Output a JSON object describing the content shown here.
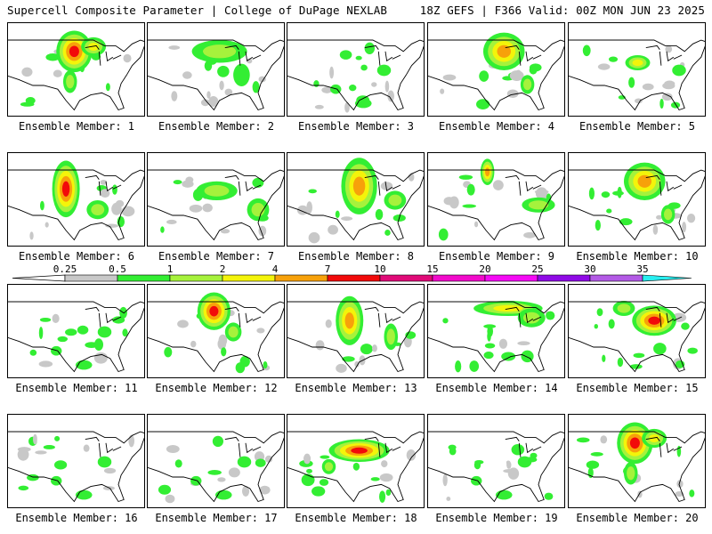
{
  "header": {
    "left": "Supercell Composite Parameter | College of DuPage NEXLAB",
    "right": "18Z GEFS | F366 Valid: 00Z MON JUN 23 2025"
  },
  "colorbar": {
    "labels": [
      "0.25",
      "0.5",
      "1",
      "2",
      "4",
      "7",
      "10",
      "15",
      "20",
      "25",
      "30",
      "35"
    ],
    "colors": [
      "#c8c8c8",
      "#33ee33",
      "#a6f23c",
      "#f4f40a",
      "#f7a10a",
      "#f20a0a",
      "#e00a78",
      "#f20acb",
      "#f50af5",
      "#8f0ae6",
      "#b35ae6",
      "#28eef0"
    ]
  },
  "members": [
    {
      "label": "Ensemble Member: 1",
      "hotspot": "upper-midwest-strong"
    },
    {
      "label": "Ensemble Member: 2",
      "hotspot": "north-plains-weak"
    },
    {
      "label": "Ensemble Member: 3",
      "hotspot": "sparse"
    },
    {
      "label": "Ensemble Member: 4",
      "hotspot": "upper-midwest-moderate"
    },
    {
      "label": "Ensemble Member: 5",
      "hotspot": "great-lakes-small"
    },
    {
      "label": "Ensemble Member: 6",
      "hotspot": "high-plains-strong"
    },
    {
      "label": "Ensemble Member: 7",
      "hotspot": "central-weak"
    },
    {
      "label": "Ensemble Member: 8",
      "hotspot": "north-plains-moderate"
    },
    {
      "label": "Ensemble Member: 9",
      "hotspot": "north-plains-small"
    },
    {
      "label": "Ensemble Member: 10",
      "hotspot": "upper-midwest-moderate"
    },
    {
      "label": "Ensemble Member: 11",
      "hotspot": "sparse"
    },
    {
      "label": "Ensemble Member: 12",
      "hotspot": "north-plains-strong"
    },
    {
      "label": "Ensemble Member: 13",
      "hotspot": "central-plains-moderate"
    },
    {
      "label": "Ensemble Member: 14",
      "hotspot": "ohio-valley-band"
    },
    {
      "label": "Ensemble Member: 15",
      "hotspot": "midwest-strong"
    },
    {
      "label": "Ensemble Member: 16",
      "hotspot": "sparse"
    },
    {
      "label": "Ensemble Member: 17",
      "hotspot": "sparse"
    },
    {
      "label": "Ensemble Member: 18",
      "hotspot": "midwest-band-strong"
    },
    {
      "label": "Ensemble Member: 19",
      "hotspot": "sparse"
    },
    {
      "label": "Ensemble Member: 20",
      "hotspot": "upper-midwest-strong"
    }
  ]
}
